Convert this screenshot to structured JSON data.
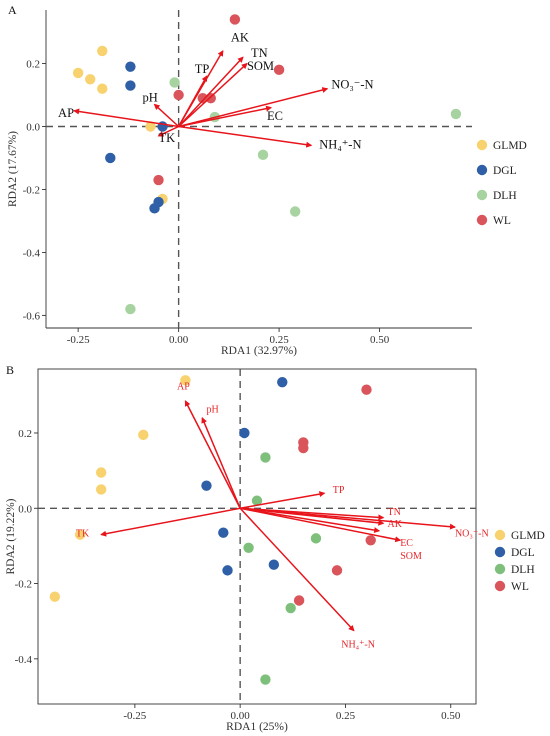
{
  "chart_data": [
    {
      "type": "scatter",
      "panel_label": "A",
      "xlabel": "RDA1 (32.97%)",
      "ylabel": "RDA2 (17.67%)",
      "xlim": [
        -0.33,
        0.73
      ],
      "ylim": [
        -0.64,
        0.37
      ],
      "xticks": [
        -0.25,
        0.0,
        0.25,
        0.5
      ],
      "xtick_labels": [
        "-0.25",
        "0.00",
        "0.25",
        "0.50"
      ],
      "yticks": [
        -0.6,
        -0.4,
        -0.2,
        0.0,
        0.2
      ],
      "ytick_labels": [
        "-0.6",
        "-0.4",
        "-0.2",
        "0.0",
        "0.2"
      ],
      "box": false,
      "legend_position": "right",
      "series": [
        {
          "name": "GLMD",
          "color": "#f7d26e",
          "points": [
            [
              -0.19,
              0.24
            ],
            [
              -0.25,
              0.17
            ],
            [
              -0.22,
              0.15
            ],
            [
              -0.19,
              0.12
            ],
            [
              -0.07,
              0.0
            ],
            [
              -0.04,
              -0.23
            ]
          ]
        },
        {
          "name": "DGL",
          "color": "#2f5fa6",
          "points": [
            [
              -0.12,
              0.19
            ],
            [
              -0.12,
              0.13
            ],
            [
              -0.04,
              0.0
            ],
            [
              -0.17,
              -0.1
            ],
            [
              -0.05,
              -0.24
            ],
            [
              -0.06,
              -0.26
            ]
          ]
        },
        {
          "name": "DLH",
          "color": "#a7d3a0",
          "points": [
            [
              -0.01,
              0.14
            ],
            [
              0.09,
              0.03
            ],
            [
              0.21,
              -0.09
            ],
            [
              0.29,
              -0.27
            ],
            [
              0.69,
              0.04
            ],
            [
              -0.12,
              -0.58
            ]
          ]
        },
        {
          "name": "WL",
          "color": "#d9555b",
          "points": [
            [
              0.14,
              0.34
            ],
            [
              0.25,
              0.18
            ],
            [
              0.06,
              0.09
            ],
            [
              0.08,
              0.09
            ],
            [
              0.0,
              0.1
            ],
            [
              -0.05,
              -0.17
            ]
          ]
        }
      ],
      "vectors": [
        {
          "label": "AK",
          "end": [
            0.11,
            0.24
          ],
          "label_at": [
            0.13,
            0.27
          ]
        },
        {
          "label": "TN",
          "end": [
            0.16,
            0.22
          ],
          "label_at": [
            0.18,
            0.22
          ]
        },
        {
          "label": "SOM",
          "end": [
            0.17,
            0.2
          ],
          "label_at": [
            0.17,
            0.18
          ]
        },
        {
          "label": "TP",
          "end": [
            0.07,
            0.16
          ],
          "label_at": [
            0.04,
            0.17
          ]
        },
        {
          "label": "NO₃⁻-N",
          "end": [
            0.37,
            0.12
          ],
          "label_at": [
            0.38,
            0.12
          ]
        },
        {
          "label": "EC",
          "end": [
            0.23,
            0.06
          ],
          "label_at": [
            0.22,
            0.02
          ]
        },
        {
          "label": "NH₄⁺-N",
          "end": [
            0.33,
            -0.06
          ],
          "label_at": [
            0.35,
            -0.07
          ]
        },
        {
          "label": "pH",
          "end": [
            -0.06,
            0.07
          ],
          "label_at": [
            -0.09,
            0.08
          ]
        },
        {
          "label": "AP",
          "end": [
            -0.26,
            0.05
          ],
          "label_at": [
            -0.3,
            0.03
          ]
        },
        {
          "label": "TK",
          "end": [
            -0.05,
            -0.03
          ],
          "label_at": [
            -0.05,
            -0.05
          ]
        }
      ]
    },
    {
      "type": "scatter",
      "panel_label": "B",
      "xlabel": "RDA1 (25%)",
      "ylabel": "RDA2 (19.22%)",
      "xlim": [
        -0.48,
        0.56
      ],
      "ylim": [
        -0.52,
        0.37
      ],
      "xticks": [
        -0.25,
        0.0,
        0.25,
        0.5
      ],
      "xtick_labels": [
        "-0.25",
        "0.00",
        "0.25",
        "0.50"
      ],
      "yticks": [
        -0.4,
        -0.2,
        0.0,
        0.2
      ],
      "ytick_labels": [
        "-0.4",
        "-0.2",
        "0.0",
        "0.2"
      ],
      "box": true,
      "legend_position": "right",
      "series": [
        {
          "name": "GLMD",
          "color": "#f7d26e",
          "points": [
            [
              -0.13,
              0.34
            ],
            [
              -0.23,
              0.195
            ],
            [
              -0.33,
              0.095
            ],
            [
              -0.33,
              0.05
            ],
            [
              -0.38,
              -0.07
            ],
            [
              -0.44,
              -0.235
            ]
          ]
        },
        {
          "name": "DGL",
          "color": "#2f5fa6",
          "points": [
            [
              0.1,
              0.335
            ],
            [
              0.01,
              0.2
            ],
            [
              -0.08,
              0.06
            ],
            [
              -0.04,
              -0.065
            ],
            [
              -0.03,
              -0.165
            ],
            [
              0.08,
              -0.15
            ]
          ]
        },
        {
          "name": "DLH",
          "color": "#7ec07b",
          "points": [
            [
              0.06,
              0.135
            ],
            [
              0.04,
              0.02
            ],
            [
              0.18,
              -0.08
            ],
            [
              0.02,
              -0.105
            ],
            [
              0.12,
              -0.265
            ],
            [
              0.06,
              -0.455
            ]
          ]
        },
        {
          "name": "WL",
          "color": "#d9555b",
          "points": [
            [
              0.3,
              0.315
            ],
            [
              0.15,
              0.175
            ],
            [
              0.15,
              0.16
            ],
            [
              0.31,
              -0.085
            ],
            [
              0.23,
              -0.165
            ],
            [
              0.14,
              -0.245
            ]
          ]
        }
      ],
      "vectors": [
        {
          "label": "AP",
          "end": [
            -0.13,
            0.285
          ],
          "label_at": [
            -0.15,
            0.315
          ]
        },
        {
          "label": "pH",
          "end": [
            -0.09,
            0.24
          ],
          "label_at": [
            -0.08,
            0.255
          ]
        },
        {
          "label": "TP",
          "end": [
            0.2,
            0.04
          ],
          "label_at": [
            0.22,
            0.04
          ]
        },
        {
          "label": "TK",
          "end": [
            -0.33,
            -0.07
          ],
          "label_at": [
            -0.39,
            -0.075
          ]
        },
        {
          "label": "TN",
          "end": [
            0.34,
            -0.025
          ],
          "label_at": [
            0.35,
            -0.018
          ]
        },
        {
          "label": "AK",
          "end": [
            0.34,
            -0.04
          ],
          "label_at": [
            0.35,
            -0.05
          ]
        },
        {
          "label": "NO₃⁻-N",
          "end": [
            0.51,
            -0.05
          ],
          "label_at": [
            0.51,
            -0.075
          ]
        },
        {
          "label": "EC",
          "end": [
            0.38,
            -0.085
          ],
          "label_at": [
            0.38,
            -0.1
          ]
        },
        {
          "label": "SOM",
          "end": [
            0.33,
            -0.06
          ],
          "label_at": [
            0.38,
            -0.135
          ]
        },
        {
          "label": "NH₄⁺-N",
          "end": [
            0.27,
            -0.325
          ],
          "label_at": [
            0.24,
            -0.37
          ]
        }
      ]
    }
  ]
}
